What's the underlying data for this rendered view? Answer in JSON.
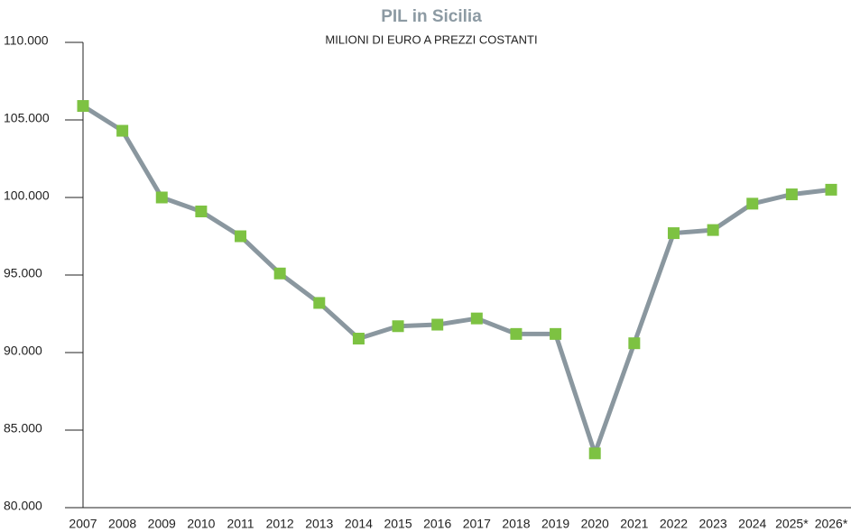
{
  "chart_data": {
    "type": "line",
    "title": "PIL in Sicilia",
    "subtitle": "MILIONI DI EURO A PREZZI COSTANTI",
    "categories": [
      "2007",
      "2008",
      "2009",
      "2010",
      "2011",
      "2012",
      "2013",
      "2014",
      "2015",
      "2016",
      "2017",
      "2018",
      "2019",
      "2020",
      "2021",
      "2022",
      "2023",
      "2024",
      "2025*",
      "2026*"
    ],
    "values": [
      105900,
      104300,
      100000,
      99100,
      97500,
      95100,
      93200,
      90900,
      91700,
      91800,
      92200,
      91200,
      91200,
      83500,
      90600,
      97700,
      97900,
      99600,
      100200,
      100500
    ],
    "line_color": "#8a979f",
    "marker_color": "#7dc242",
    "ylim": [
      80000,
      110000
    ],
    "yticks": [
      {
        "value": 80000,
        "label": "80.000"
      },
      {
        "value": 85000,
        "label": "85.000"
      },
      {
        "value": 90000,
        "label": "90.000"
      },
      {
        "value": 95000,
        "label": "95.000"
      },
      {
        "value": 100000,
        "label": "100.000"
      },
      {
        "value": 105000,
        "label": "105.000"
      },
      {
        "value": 110000,
        "label": "110.000"
      }
    ]
  }
}
